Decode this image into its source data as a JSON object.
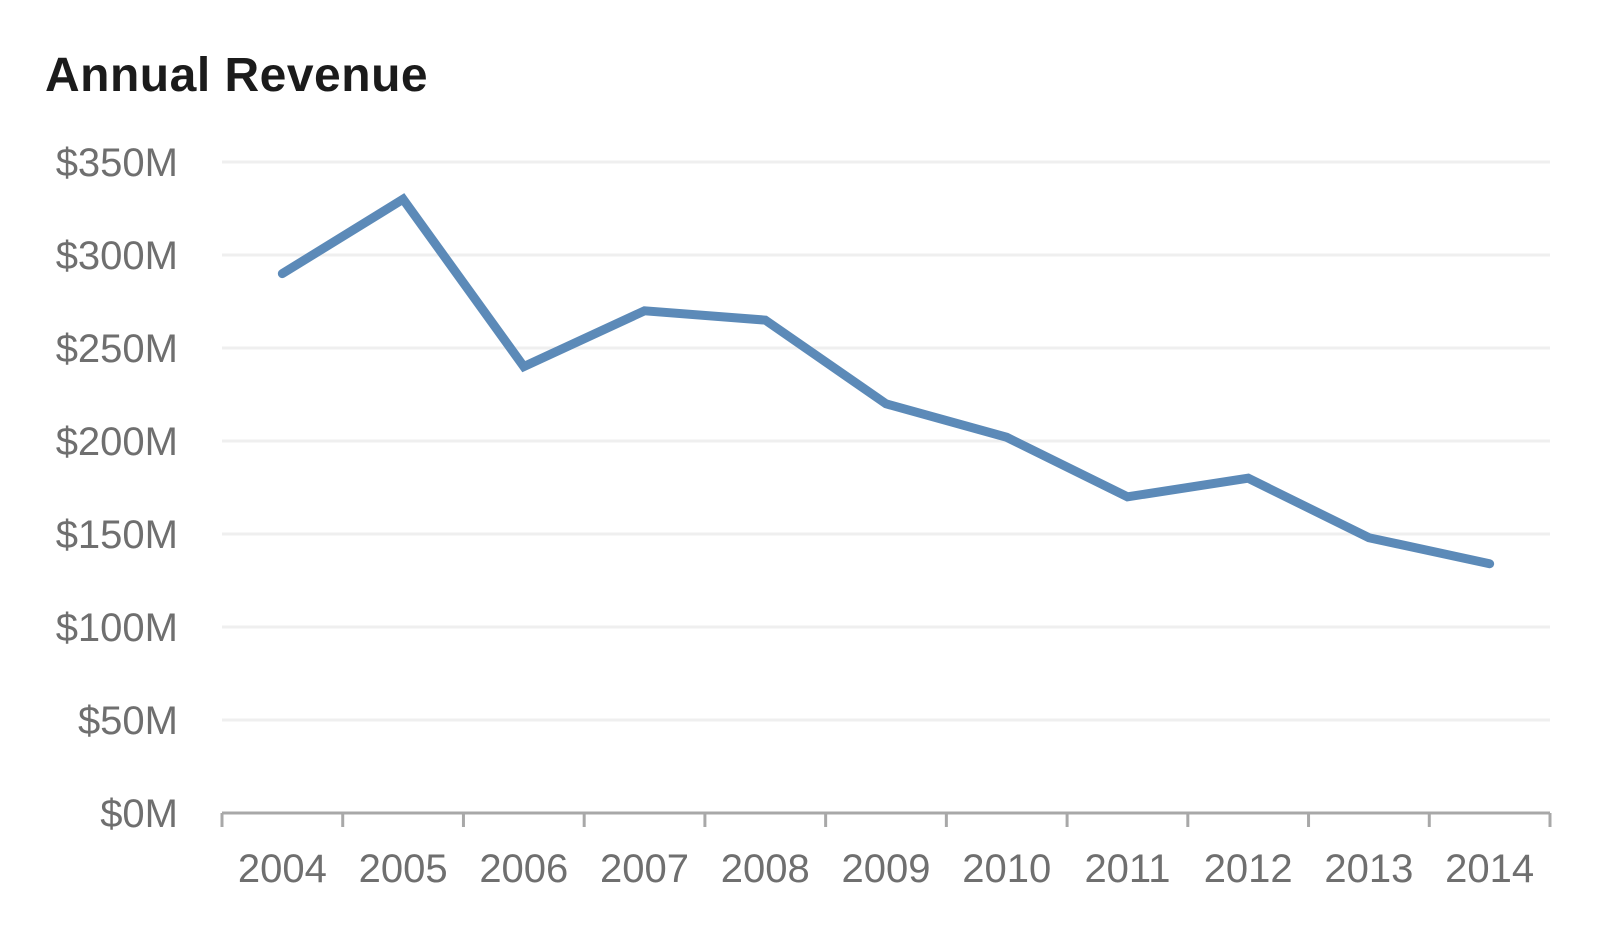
{
  "title": "Annual Revenue",
  "chart_data": {
    "type": "line",
    "title": "Annual Revenue",
    "x": [
      "2004",
      "2005",
      "2006",
      "2007",
      "2008",
      "2009",
      "2010",
      "2011",
      "2012",
      "2013",
      "2014"
    ],
    "series": [
      {
        "name": "Annual Revenue",
        "values": [
          290,
          330,
          240,
          270,
          265,
          220,
          202,
          170,
          180,
          148,
          134
        ]
      }
    ],
    "unit_prefix": "$",
    "unit_suffix": "M",
    "y_ticks": [
      0,
      50,
      100,
      150,
      200,
      250,
      300,
      350
    ],
    "y_tick_labels": [
      "$0M",
      "$50M",
      "$100M",
      "$150M",
      "$200M",
      "$250M",
      "$300M",
      "$350M"
    ],
    "ylim": [
      0,
      350
    ],
    "xlabel": "",
    "ylabel": "",
    "legend": "none",
    "grid": "horizontal"
  },
  "colors": {
    "line": "#5c8ab8",
    "title_text": "#1b1b1b",
    "axis_line": "#a8a8a8",
    "grid_line": "#efefef",
    "tick_label": "#6f6f6f",
    "background": "#ffffff"
  }
}
